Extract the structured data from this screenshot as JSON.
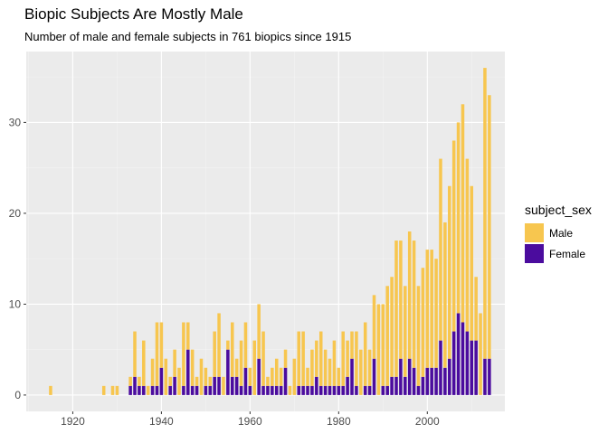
{
  "chart_data": {
    "type": "bar",
    "title": "Biopic Subjects Are Mostly Male",
    "subtitle": "Number of male and female subjects in 761 biopics since 1915",
    "xlabel": "",
    "ylabel": "",
    "xlim": [
      1909.5,
      2017.5
    ],
    "ylim": [
      -1.8,
      37.8
    ],
    "x_ticks": [
      1920,
      1940,
      1960,
      1980,
      2000
    ],
    "y_ticks": [
      0,
      10,
      20,
      30
    ],
    "grid": true,
    "legend": {
      "title": "subject_sex",
      "position": "right",
      "entries": [
        {
          "label": "Male",
          "color": "#F7C64F"
        },
        {
          "label": "Female",
          "color": "#4B0C9E"
        }
      ]
    },
    "stacked": true,
    "series": [
      {
        "name": "Male",
        "color": "#F7C64F",
        "points": [
          [
            1915,
            1
          ],
          [
            1927,
            1
          ],
          [
            1929,
            1
          ],
          [
            1930,
            1
          ],
          [
            1933,
            1
          ],
          [
            1934,
            5
          ],
          [
            1935,
            1
          ],
          [
            1936,
            5
          ],
          [
            1937,
            1
          ],
          [
            1938,
            3
          ],
          [
            1939,
            7
          ],
          [
            1940,
            5
          ],
          [
            1941,
            4
          ],
          [
            1942,
            1
          ],
          [
            1943,
            3
          ],
          [
            1944,
            3
          ],
          [
            1945,
            7
          ],
          [
            1946,
            3
          ],
          [
            1947,
            4
          ],
          [
            1948,
            1
          ],
          [
            1949,
            4
          ],
          [
            1950,
            2
          ],
          [
            1951,
            1
          ],
          [
            1952,
            5
          ],
          [
            1953,
            7
          ],
          [
            1954,
            2
          ],
          [
            1955,
            1
          ],
          [
            1956,
            6
          ],
          [
            1957,
            2
          ],
          [
            1958,
            5
          ],
          [
            1959,
            5
          ],
          [
            1960,
            2
          ],
          [
            1961,
            6
          ],
          [
            1962,
            6
          ],
          [
            1963,
            6
          ],
          [
            1964,
            1
          ],
          [
            1965,
            2
          ],
          [
            1966,
            3
          ],
          [
            1967,
            2
          ],
          [
            1968,
            2
          ],
          [
            1969,
            1
          ],
          [
            1970,
            4
          ],
          [
            1971,
            6
          ],
          [
            1972,
            6
          ],
          [
            1973,
            2
          ],
          [
            1974,
            4
          ],
          [
            1975,
            4
          ],
          [
            1976,
            6
          ],
          [
            1977,
            4
          ],
          [
            1978,
            3
          ],
          [
            1979,
            5
          ],
          [
            1980,
            2
          ],
          [
            1981,
            6
          ],
          [
            1982,
            4
          ],
          [
            1983,
            3
          ],
          [
            1984,
            6
          ],
          [
            1985,
            5
          ],
          [
            1986,
            7
          ],
          [
            1987,
            4
          ],
          [
            1988,
            7
          ],
          [
            1989,
            10
          ],
          [
            1990,
            9
          ],
          [
            1991,
            11
          ],
          [
            1992,
            11
          ],
          [
            1993,
            15
          ],
          [
            1994,
            13
          ],
          [
            1995,
            10
          ],
          [
            1996,
            14
          ],
          [
            1997,
            14
          ],
          [
            1998,
            11
          ],
          [
            1999,
            12
          ],
          [
            2000,
            13
          ],
          [
            2001,
            13
          ],
          [
            2002,
            12
          ],
          [
            2003,
            20
          ],
          [
            2004,
            16
          ],
          [
            2005,
            19
          ],
          [
            2006,
            21
          ],
          [
            2007,
            21
          ],
          [
            2008,
            24
          ],
          [
            2009,
            19
          ],
          [
            2010,
            17
          ],
          [
            2011,
            7
          ],
          [
            2012,
            9
          ],
          [
            2013,
            32
          ],
          [
            2014,
            29
          ]
        ]
      },
      {
        "name": "Female",
        "color": "#4B0C9E",
        "points": [
          [
            1933,
            1
          ],
          [
            1934,
            2
          ],
          [
            1935,
            1
          ],
          [
            1936,
            1
          ],
          [
            1938,
            1
          ],
          [
            1939,
            1
          ],
          [
            1940,
            3
          ],
          [
            1942,
            1
          ],
          [
            1943,
            2
          ],
          [
            1945,
            1
          ],
          [
            1946,
            5
          ],
          [
            1947,
            1
          ],
          [
            1948,
            1
          ],
          [
            1950,
            1
          ],
          [
            1951,
            1
          ],
          [
            1952,
            2
          ],
          [
            1953,
            2
          ],
          [
            1955,
            5
          ],
          [
            1956,
            2
          ],
          [
            1957,
            2
          ],
          [
            1958,
            1
          ],
          [
            1959,
            3
          ],
          [
            1960,
            1
          ],
          [
            1962,
            4
          ],
          [
            1963,
            1
          ],
          [
            1964,
            1
          ],
          [
            1965,
            1
          ],
          [
            1966,
            1
          ],
          [
            1967,
            1
          ],
          [
            1968,
            3
          ],
          [
            1971,
            1
          ],
          [
            1972,
            1
          ],
          [
            1973,
            1
          ],
          [
            1974,
            1
          ],
          [
            1975,
            2
          ],
          [
            1976,
            1
          ],
          [
            1977,
            1
          ],
          [
            1978,
            1
          ],
          [
            1979,
            1
          ],
          [
            1980,
            1
          ],
          [
            1981,
            1
          ],
          [
            1982,
            2
          ],
          [
            1983,
            4
          ],
          [
            1984,
            1
          ],
          [
            1986,
            1
          ],
          [
            1987,
            1
          ],
          [
            1988,
            4
          ],
          [
            1990,
            1
          ],
          [
            1991,
            1
          ],
          [
            1992,
            2
          ],
          [
            1993,
            2
          ],
          [
            1994,
            4
          ],
          [
            1995,
            2
          ],
          [
            1996,
            4
          ],
          [
            1997,
            3
          ],
          [
            1998,
            1
          ],
          [
            1999,
            2
          ],
          [
            2000,
            3
          ],
          [
            2001,
            3
          ],
          [
            2002,
            3
          ],
          [
            2003,
            6
          ],
          [
            2004,
            3
          ],
          [
            2005,
            4
          ],
          [
            2006,
            7
          ],
          [
            2007,
            9
          ],
          [
            2008,
            8
          ],
          [
            2009,
            7
          ],
          [
            2010,
            6
          ],
          [
            2011,
            6
          ],
          [
            2013,
            4
          ],
          [
            2014,
            4
          ]
        ]
      }
    ]
  }
}
